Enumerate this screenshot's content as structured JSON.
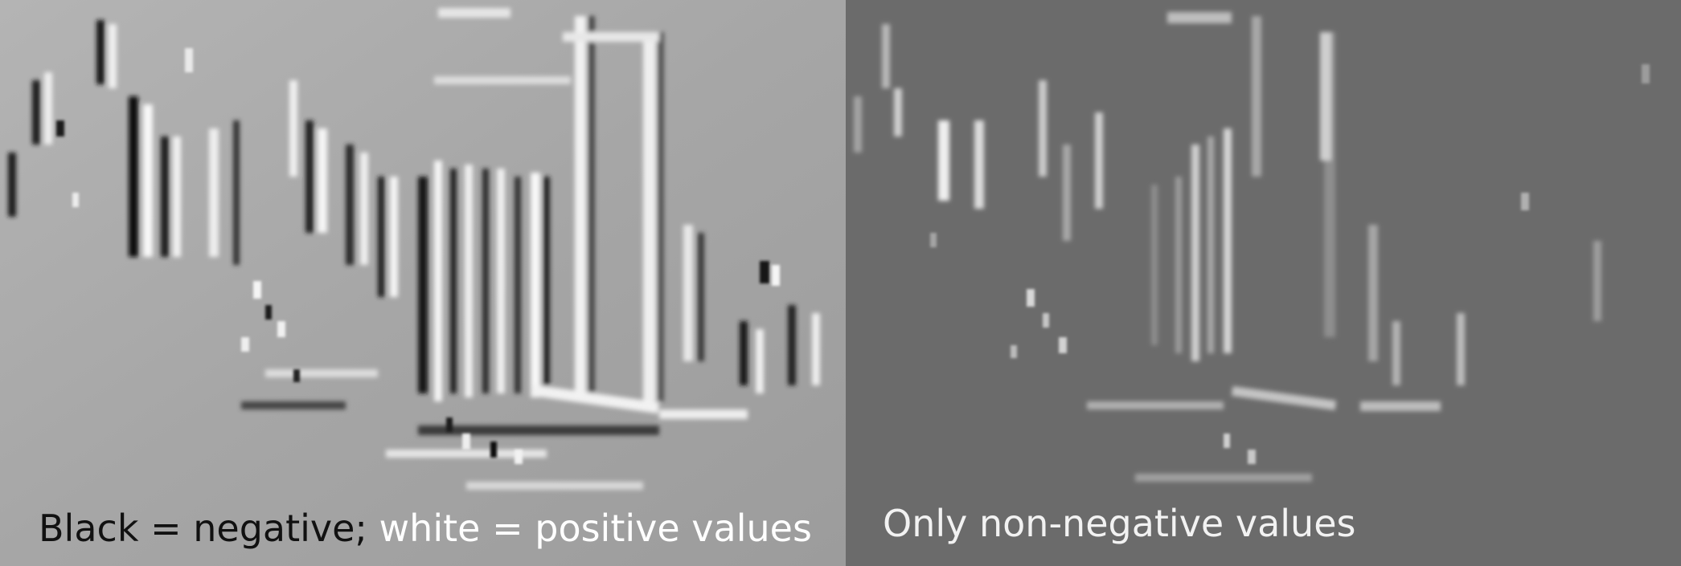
{
  "panels": [
    {
      "id": "left",
      "caption_dark": "Black = negative;",
      "caption_light": " white = positive values"
    },
    {
      "id": "right",
      "caption": "Only non-negative values"
    }
  ],
  "colors": {
    "left_background": "#a8a8a8",
    "right_background": "#6a6a6a",
    "edge_white": "#f4f4f4",
    "edge_black": "#121212"
  }
}
